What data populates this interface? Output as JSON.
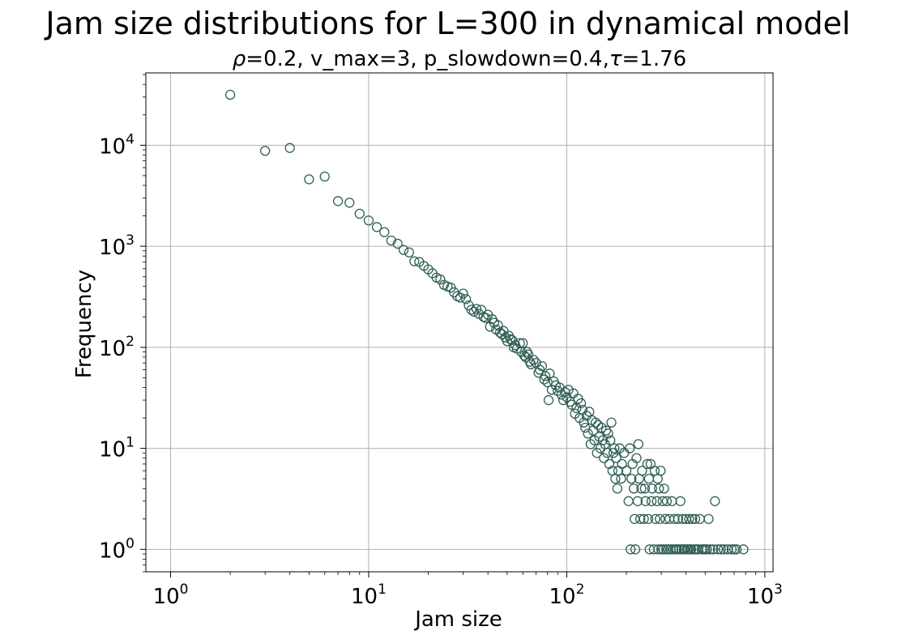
{
  "chart_data": {
    "type": "scatter",
    "title": "Jam size distributions for L=300 in dynamical model",
    "subtitle_parts": [
      {
        "text": "ρ",
        "italic": true
      },
      {
        "text": "=0.2, v_max=3, p_slowdown=0.4,",
        "italic": false
      },
      {
        "text": "τ",
        "italic": true
      },
      {
        "text": "=1.76",
        "italic": false
      }
    ],
    "xlabel": "Jam size",
    "ylabel": "Frequency",
    "xscale": "log",
    "yscale": "log",
    "xlim": [
      0.75,
      1100
    ],
    "ylim": [
      0.6,
      52000
    ],
    "x_ticks": [
      {
        "base": "10",
        "exp": "0",
        "value": 1
      },
      {
        "base": "10",
        "exp": "1",
        "value": 10
      },
      {
        "base": "10",
        "exp": "2",
        "value": 100
      },
      {
        "base": "10",
        "exp": "3",
        "value": 1000
      }
    ],
    "y_ticks": [
      {
        "base": "10",
        "exp": "0",
        "value": 1
      },
      {
        "base": "10",
        "exp": "1",
        "value": 10
      },
      {
        "base": "10",
        "exp": "2",
        "value": 100
      },
      {
        "base": "10",
        "exp": "3",
        "value": 1000
      },
      {
        "base": "10",
        "exp": "4",
        "value": 10000
      }
    ],
    "grid": true,
    "marker": "open-circle",
    "marker_color": "#2f5f55",
    "points": [
      [
        2,
        31600
      ],
      [
        3,
        8800
      ],
      [
        4,
        9400
      ],
      [
        5,
        4600
      ],
      [
        6,
        4900
      ],
      [
        7,
        2800
      ],
      [
        8,
        2700
      ],
      [
        9,
        2100
      ],
      [
        10,
        1800
      ],
      [
        11,
        1550
      ],
      [
        12,
        1380
      ],
      [
        13,
        1140
      ],
      [
        14,
        1060
      ],
      [
        15,
        920
      ],
      [
        16,
        870
      ],
      [
        17,
        710
      ],
      [
        18,
        700
      ],
      [
        19,
        640
      ],
      [
        20,
        590
      ],
      [
        21,
        540
      ],
      [
        22,
        490
      ],
      [
        23,
        470
      ],
      [
        24,
        415
      ],
      [
        25,
        400
      ],
      [
        26,
        390
      ],
      [
        27,
        350
      ],
      [
        28,
        320
      ],
      [
        29,
        310
      ],
      [
        30,
        340
      ],
      [
        31,
        300
      ],
      [
        32,
        260
      ],
      [
        33,
        235
      ],
      [
        34,
        225
      ],
      [
        35,
        240
      ],
      [
        36,
        215
      ],
      [
        37,
        235
      ],
      [
        38,
        200
      ],
      [
        39,
        195
      ],
      [
        40,
        210
      ],
      [
        41,
        160
      ],
      [
        42,
        190
      ],
      [
        43,
        175
      ],
      [
        44,
        150
      ],
      [
        45,
        165
      ],
      [
        46,
        140
      ],
      [
        47,
        135
      ],
      [
        48,
        145
      ],
      [
        49,
        125
      ],
      [
        50,
        115
      ],
      [
        51,
        130
      ],
      [
        52,
        120
      ],
      [
        53,
        118
      ],
      [
        54,
        100
      ],
      [
        55,
        105
      ],
      [
        56,
        97
      ],
      [
        58,
        110
      ],
      [
        59,
        90
      ],
      [
        60,
        110
      ],
      [
        61,
        83
      ],
      [
        62,
        80
      ],
      [
        63,
        90
      ],
      [
        64,
        85
      ],
      [
        65,
        72
      ],
      [
        66,
        68
      ],
      [
        68,
        75
      ],
      [
        70,
        70
      ],
      [
        72,
        56
      ],
      [
        73,
        60
      ],
      [
        75,
        65
      ],
      [
        77,
        48
      ],
      [
        78,
        52
      ],
      [
        80,
        45
      ],
      [
        81,
        30
      ],
      [
        82,
        55
      ],
      [
        84,
        38
      ],
      [
        86,
        46
      ],
      [
        88,
        42
      ],
      [
        90,
        37
      ],
      [
        92,
        40
      ],
      [
        94,
        34
      ],
      [
        96,
        30
      ],
      [
        98,
        36
      ],
      [
        100,
        32
      ],
      [
        102,
        38
      ],
      [
        104,
        29
      ],
      [
        106,
        27
      ],
      [
        108,
        35
      ],
      [
        110,
        22
      ],
      [
        112,
        25
      ],
      [
        114,
        31
      ],
      [
        116,
        20
      ],
      [
        118,
        28
      ],
      [
        120,
        24
      ],
      [
        122,
        18
      ],
      [
        124,
        16
      ],
      [
        126,
        21
      ],
      [
        128,
        14
      ],
      [
        130,
        23
      ],
      [
        132,
        11
      ],
      [
        134,
        19
      ],
      [
        136,
        15
      ],
      [
        138,
        12
      ],
      [
        140,
        18
      ],
      [
        142,
        9
      ],
      [
        144,
        17
      ],
      [
        146,
        13
      ],
      [
        148,
        10
      ],
      [
        150,
        16
      ],
      [
        152,
        12
      ],
      [
        154,
        8
      ],
      [
        156,
        11
      ],
      [
        158,
        15
      ],
      [
        160,
        9
      ],
      [
        162,
        14
      ],
      [
        164,
        7
      ],
      [
        166,
        12
      ],
      [
        168,
        18
      ],
      [
        170,
        6
      ],
      [
        172,
        9
      ],
      [
        174,
        10
      ],
      [
        176,
        5
      ],
      [
        178,
        8
      ],
      [
        180,
        4
      ],
      [
        182,
        6
      ],
      [
        185,
        10
      ],
      [
        188,
        5
      ],
      [
        190,
        7
      ],
      [
        195,
        9
      ],
      [
        200,
        6
      ],
      [
        205,
        3
      ],
      [
        208,
        10
      ],
      [
        210,
        1
      ],
      [
        212,
        5
      ],
      [
        215,
        7
      ],
      [
        218,
        4
      ],
      [
        220,
        2
      ],
      [
        222,
        1
      ],
      [
        225,
        8
      ],
      [
        228,
        3
      ],
      [
        230,
        11
      ],
      [
        232,
        5
      ],
      [
        235,
        2
      ],
      [
        238,
        4
      ],
      [
        240,
        6
      ],
      [
        245,
        2
      ],
      [
        248,
        4
      ],
      [
        250,
        3
      ],
      [
        255,
        7
      ],
      [
        258,
        2
      ],
      [
        260,
        5
      ],
      [
        262,
        1
      ],
      [
        265,
        7
      ],
      [
        268,
        3
      ],
      [
        270,
        4
      ],
      [
        275,
        1
      ],
      [
        278,
        6
      ],
      [
        280,
        2
      ],
      [
        285,
        3
      ],
      [
        288,
        5
      ],
      [
        290,
        1
      ],
      [
        292,
        4
      ],
      [
        295,
        2
      ],
      [
        298,
        6
      ],
      [
        300,
        1
      ],
      [
        305,
        3
      ],
      [
        308,
        1
      ],
      [
        310,
        4
      ],
      [
        315,
        2
      ],
      [
        318,
        1
      ],
      [
        320,
        3
      ],
      [
        325,
        1
      ],
      [
        330,
        2
      ],
      [
        335,
        1
      ],
      [
        340,
        3
      ],
      [
        345,
        1
      ],
      [
        350,
        2
      ],
      [
        355,
        1
      ],
      [
        360,
        1
      ],
      [
        365,
        2
      ],
      [
        370,
        1
      ],
      [
        375,
        3
      ],
      [
        380,
        1
      ],
      [
        385,
        2
      ],
      [
        390,
        1
      ],
      [
        395,
        1
      ],
      [
        400,
        2
      ],
      [
        405,
        1
      ],
      [
        410,
        1
      ],
      [
        415,
        2
      ],
      [
        420,
        1
      ],
      [
        425,
        1
      ],
      [
        430,
        2
      ],
      [
        440,
        1
      ],
      [
        445,
        2
      ],
      [
        450,
        1
      ],
      [
        460,
        1
      ],
      [
        470,
        2
      ],
      [
        480,
        1
      ],
      [
        490,
        1
      ],
      [
        500,
        1
      ],
      [
        510,
        1
      ],
      [
        520,
        2
      ],
      [
        530,
        1
      ],
      [
        550,
        1
      ],
      [
        560,
        3
      ],
      [
        580,
        1
      ],
      [
        600,
        1
      ],
      [
        620,
        1
      ],
      [
        650,
        1
      ],
      [
        680,
        1
      ],
      [
        700,
        1
      ],
      [
        720,
        1
      ],
      [
        780,
        1
      ]
    ]
  }
}
